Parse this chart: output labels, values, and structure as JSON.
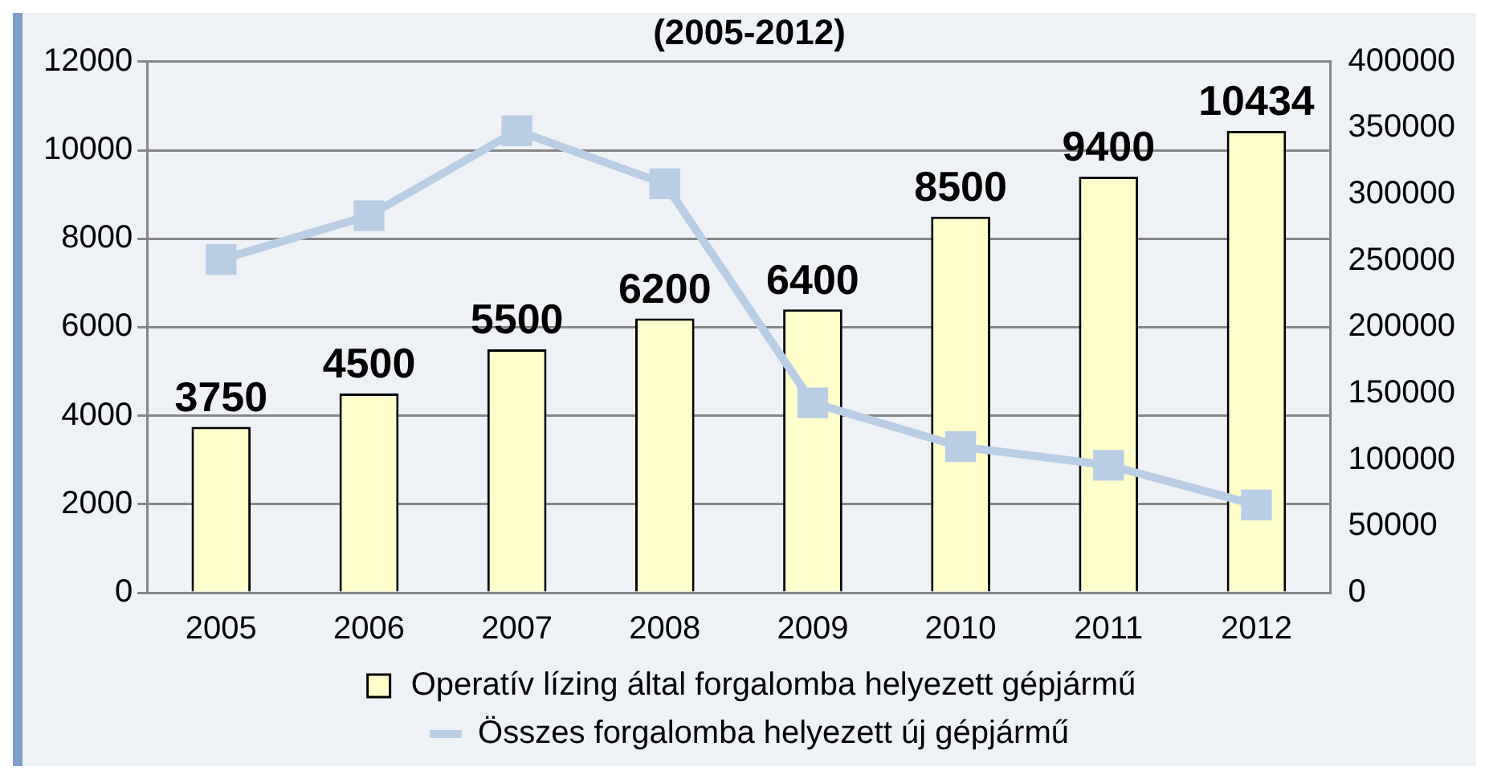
{
  "chart_data": {
    "type": "bar",
    "title": "(2005-2012)",
    "categories": [
      "2005",
      "2006",
      "2007",
      "2008",
      "2009",
      "2010",
      "2011",
      "2012"
    ],
    "series": [
      {
        "name": "Operatív lízing által forgalomba helyezett gépjármű",
        "color": "#ffffcc",
        "values": [
          3750,
          4500,
          5500,
          6200,
          6400,
          8500,
          9400,
          10434
        ],
        "value_labels": [
          "3750",
          "4500",
          "5500",
          "6200",
          "6400",
          "8500",
          "9400",
          "10434"
        ]
      },
      {
        "name": "Összes forgalomba helyezett új gépjármű",
        "type": "line",
        "axis": "y2",
        "color": "#b9cde5",
        "values": [
          251000,
          284000,
          348000,
          308000,
          143000,
          110000,
          96000,
          66000
        ]
      }
    ],
    "ylim": [
      0,
      12000
    ],
    "yticks": [
      0,
      2000,
      4000,
      6000,
      8000,
      10000,
      12000
    ],
    "y2lim": [
      0,
      400000
    ],
    "y2ticks": [
      0,
      50000,
      100000,
      150000,
      200000,
      250000,
      300000,
      350000,
      400000
    ],
    "grid": "y",
    "legend": "bottom",
    "marker": "square",
    "line_style": "solid"
  }
}
